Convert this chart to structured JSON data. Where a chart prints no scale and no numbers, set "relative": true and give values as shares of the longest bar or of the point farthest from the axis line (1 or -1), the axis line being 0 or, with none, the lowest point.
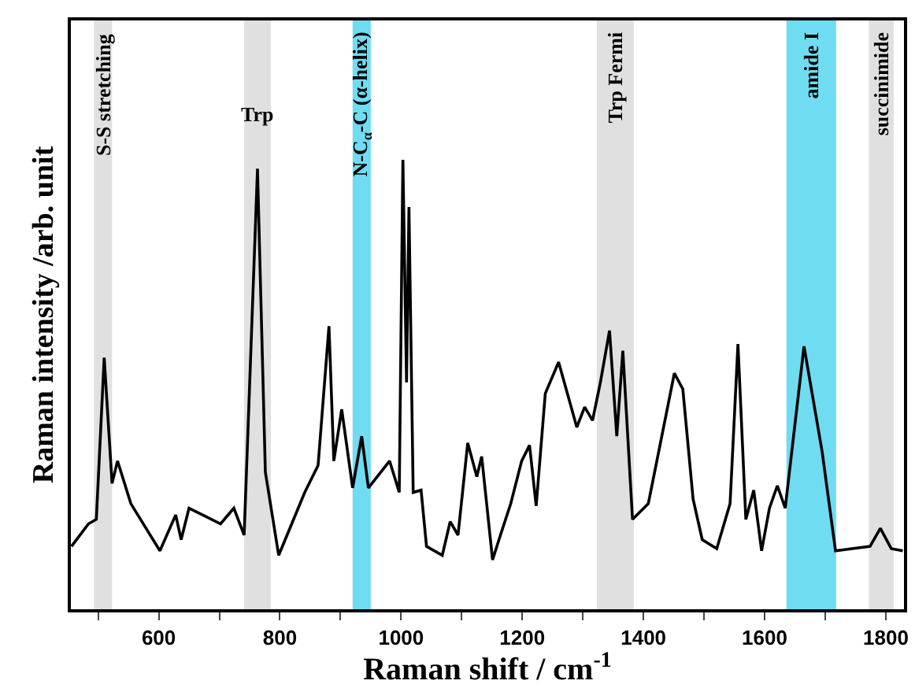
{
  "chart_data": {
    "type": "line",
    "relative": true,
    "xlabel": "Raman shift / cm$^{-1}$",
    "ylabel": "Raman intensity /arb. unit",
    "x": [
      456,
      484,
      497,
      510,
      523,
      532,
      554,
      602,
      628,
      637,
      650,
      702,
      724,
      741,
      763,
      776,
      798,
      841,
      863,
      881,
      889,
      902,
      920,
      935,
      946,
      981,
      997,
      1003,
      1009,
      1013,
      1020,
      1033,
      1042,
      1068,
      1081,
      1094,
      1110,
      1125,
      1133,
      1151,
      1164,
      1181,
      1199,
      1212,
      1223,
      1238,
      1260,
      1290,
      1303,
      1316,
      1329,
      1344,
      1356,
      1366,
      1382,
      1408,
      1434,
      1451,
      1465,
      1482,
      1497,
      1521,
      1543,
      1556,
      1569,
      1582,
      1595,
      1608,
      1621,
      1634,
      1665,
      1695,
      1717,
      1774,
      1791,
      1809,
      1828
    ],
    "series": [
      {
        "color": "#000000",
        "values": [
          0.14,
          0.19,
          0.2,
          0.56,
          0.28,
          0.33,
          0.235,
          0.13,
          0.21,
          0.155,
          0.225,
          0.19,
          0.225,
          0.165,
          0.98,
          0.305,
          0.12,
          0.26,
          0.32,
          0.63,
          0.33,
          0.445,
          0.27,
          0.385,
          0.27,
          0.33,
          0.26,
          1.0,
          0.505,
          0.895,
          0.26,
          0.265,
          0.14,
          0.12,
          0.195,
          0.165,
          0.37,
          0.295,
          0.34,
          0.11,
          0.165,
          0.235,
          0.33,
          0.365,
          0.23,
          0.48,
          0.55,
          0.405,
          0.45,
          0.42,
          0.505,
          0.62,
          0.385,
          0.575,
          0.2,
          0.235,
          0.41,
          0.525,
          0.49,
          0.245,
          0.155,
          0.135,
          0.235,
          0.59,
          0.2,
          0.265,
          0.13,
          0.225,
          0.275,
          0.225,
          0.585,
          0.35,
          0.13,
          0.14,
          0.18,
          0.135,
          0.13
        ]
      }
    ],
    "xlim": [
      455,
      1830
    ],
    "xticks": [
      {
        "value": 500,
        "label": null
      },
      600,
      {
        "value": 700,
        "label": null
      },
      800,
      {
        "value": 900,
        "label": null
      },
      1000,
      {
        "value": 1100,
        "label": null
      },
      1200,
      {
        "value": 1300,
        "label": null
      },
      1400,
      {
        "value": 1500,
        "label": null
      },
      1600,
      {
        "value": 1700,
        "label": null
      },
      1800
    ],
    "bands": [
      {
        "axis": "x",
        "from": 493,
        "to": 523,
        "label": "S-S stretching",
        "color": "#e0e0e0"
      },
      {
        "axis": "x",
        "from": 741,
        "to": 785,
        "label": "Trp",
        "color": "#e0e0e0"
      },
      {
        "axis": "x",
        "from": 920,
        "to": 950,
        "label": "N-C$_{α}$-C (α-helix)",
        "color": "#6fdcf2"
      },
      {
        "axis": "x",
        "from": 1323,
        "to": 1384,
        "label": "Trp Fermi",
        "color": "#e0e0e0"
      },
      {
        "axis": "x",
        "from": 1636,
        "to": 1718,
        "label": "amide I",
        "color": "#6fdcf2"
      },
      {
        "axis": "x",
        "from": 1772,
        "to": 1813,
        "label": "succinimide",
        "color": "#e0e0e0"
      }
    ]
  }
}
